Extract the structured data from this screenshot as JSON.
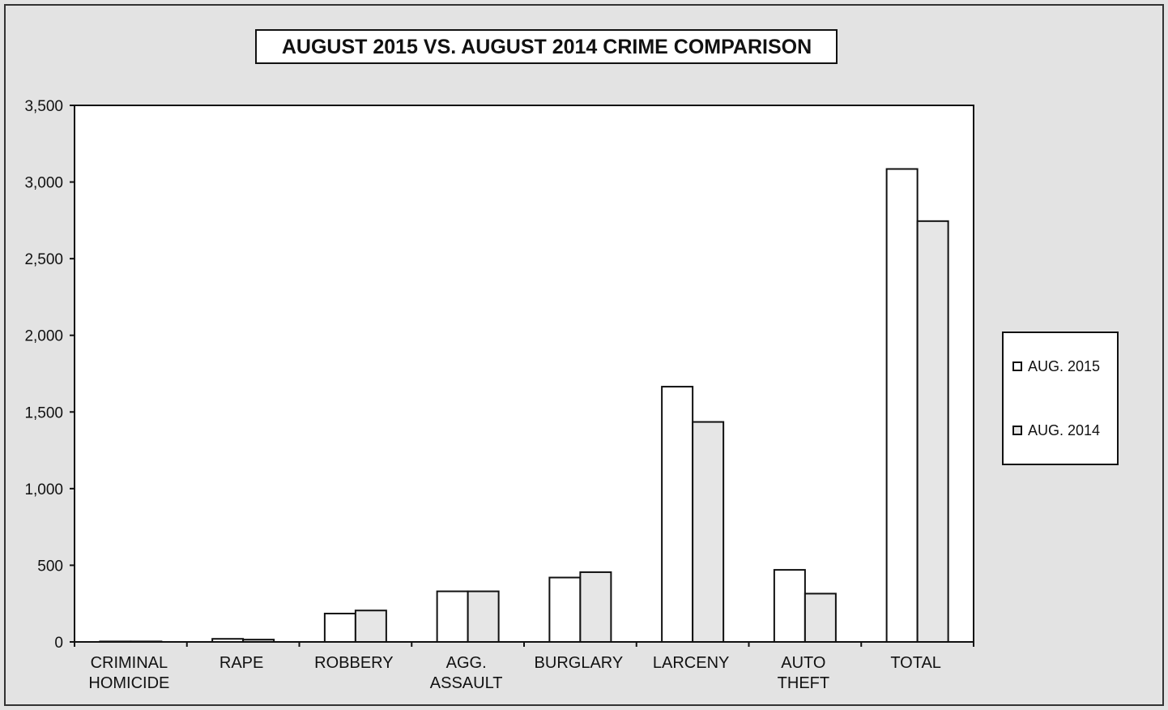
{
  "chart_data": {
    "type": "bar",
    "title": "AUGUST 2015 VS. AUGUST 2014 CRIME COMPARISON",
    "xlabel": "",
    "ylabel": "",
    "categories": [
      [
        "CRIMINAL",
        "HOMICIDE"
      ],
      [
        "RAPE"
      ],
      [
        "ROBBERY"
      ],
      [
        "AGG.",
        "ASSAULT"
      ],
      [
        "BURGLARY"
      ],
      [
        "LARCENY"
      ],
      [
        "AUTO",
        "THEFT"
      ],
      [
        "TOTAL"
      ]
    ],
    "series": [
      {
        "name": "AUG. 2015",
        "values": [
          3,
          20,
          185,
          330,
          420,
          1665,
          470,
          3085
        ],
        "fill": "#ffffff"
      },
      {
        "name": "AUG. 2014",
        "values": [
          3,
          15,
          205,
          330,
          455,
          1435,
          315,
          2745
        ],
        "fill": "#e6e6e6"
      }
    ],
    "ylim": [
      0,
      3500
    ],
    "yticks": [
      0,
      500,
      1000,
      1500,
      2000,
      2500,
      3000,
      3500
    ],
    "ytick_labels": [
      "0",
      "500",
      "1,000",
      "1,500",
      "2,000",
      "2,500",
      "3,000",
      "3,500"
    ],
    "grid": false,
    "legend_position": "right"
  },
  "colors": {
    "background": "#e3e3e3",
    "plot_area": "#ffffff",
    "outline": "#111111"
  }
}
